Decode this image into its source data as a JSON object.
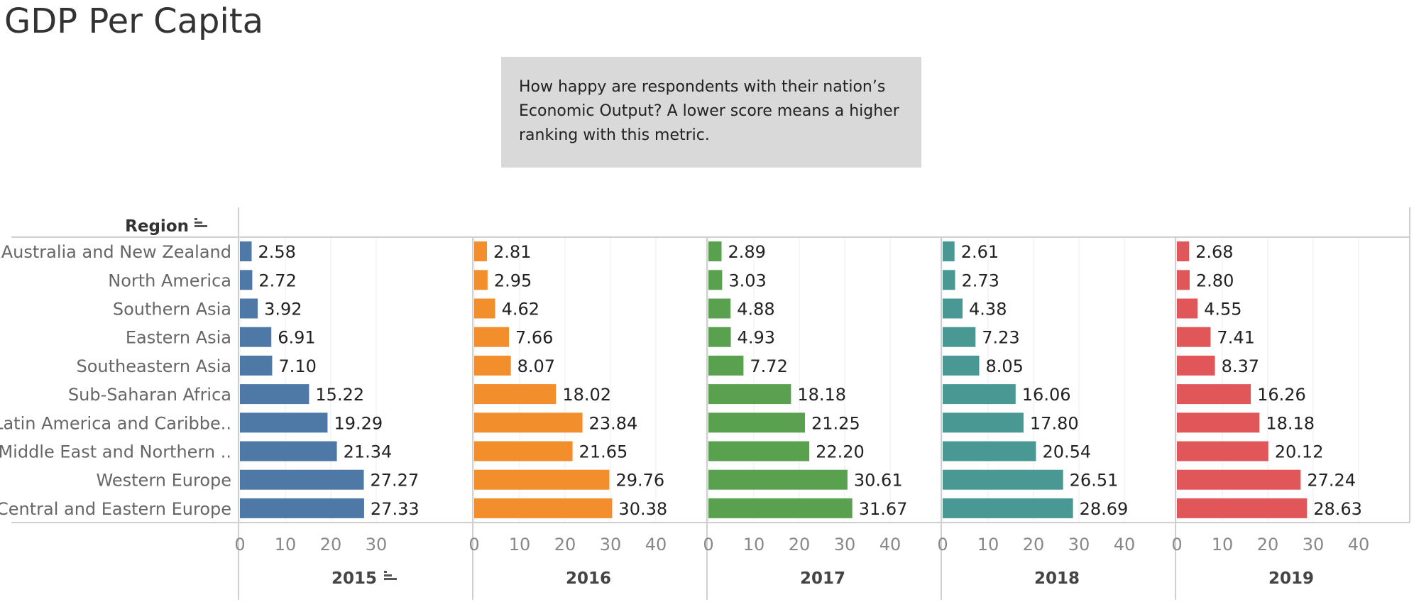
{
  "title": "GDP Per Capita",
  "note": "How happy are respondents with their nation’s Economic Output?  A lower score means a higher ranking with this metric.",
  "chart_data": {
    "type": "bar",
    "orientation": "horizontal",
    "row_header": "Region",
    "row_header_icon": "sort-icon",
    "sorted_column_icon": "sort-icon",
    "categories": [
      "Australia and New Zealand",
      "North America",
      "Southern Asia",
      "Eastern Asia",
      "Southeastern Asia",
      "Sub-Saharan Africa",
      "Latin America and Caribbe..",
      "Middle East and Northern ..",
      "Western Europe",
      "Central and Eastern Europe"
    ],
    "series": [
      {
        "name": "2015",
        "color": "#4e79a7",
        "values": [
          2.58,
          2.72,
          3.92,
          6.91,
          7.1,
          15.22,
          19.29,
          21.34,
          27.27,
          27.33
        ],
        "ticks": [
          0,
          10,
          20,
          30
        ]
      },
      {
        "name": "2016",
        "color": "#f28e2b",
        "values": [
          2.81,
          2.95,
          4.62,
          7.66,
          8.07,
          18.02,
          23.84,
          21.65,
          29.76,
          30.38
        ],
        "ticks": [
          0,
          10,
          20,
          30,
          40
        ]
      },
      {
        "name": "2017",
        "color": "#59a14f",
        "values": [
          2.89,
          3.03,
          4.88,
          4.93,
          7.72,
          18.18,
          21.25,
          22.2,
          30.61,
          31.67
        ],
        "ticks": [
          0,
          10,
          20,
          30,
          40
        ]
      },
      {
        "name": "2018",
        "color": "#499894",
        "values": [
          2.61,
          2.73,
          4.38,
          7.23,
          8.05,
          16.06,
          17.8,
          20.54,
          26.51,
          28.69
        ],
        "ticks": [
          0,
          10,
          20,
          30,
          40
        ]
      },
      {
        "name": "2019",
        "color": "#e15759",
        "values": [
          2.68,
          2.8,
          4.55,
          7.41,
          8.37,
          16.26,
          18.18,
          20.12,
          27.24,
          28.63
        ],
        "ticks": [
          0,
          10,
          20,
          30,
          40
        ]
      }
    ],
    "xlim": [
      0,
      45
    ],
    "grid": true,
    "legend": "none"
  }
}
